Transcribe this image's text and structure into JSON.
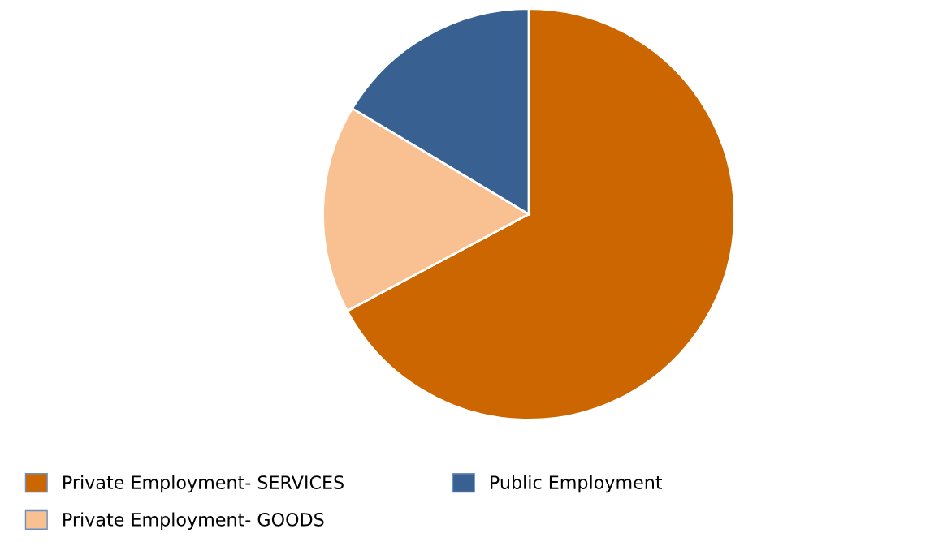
{
  "chart_data": {
    "type": "pie",
    "categories": [
      "Private Employment- SERVICES",
      "Private Employment- GOODS",
      "Public Employment"
    ],
    "values": [
      67.2,
      16.4,
      16.4
    ],
    "colors": [
      "#cc6600",
      "#f9c192",
      "#386192"
    ],
    "legend": "bottom"
  }
}
